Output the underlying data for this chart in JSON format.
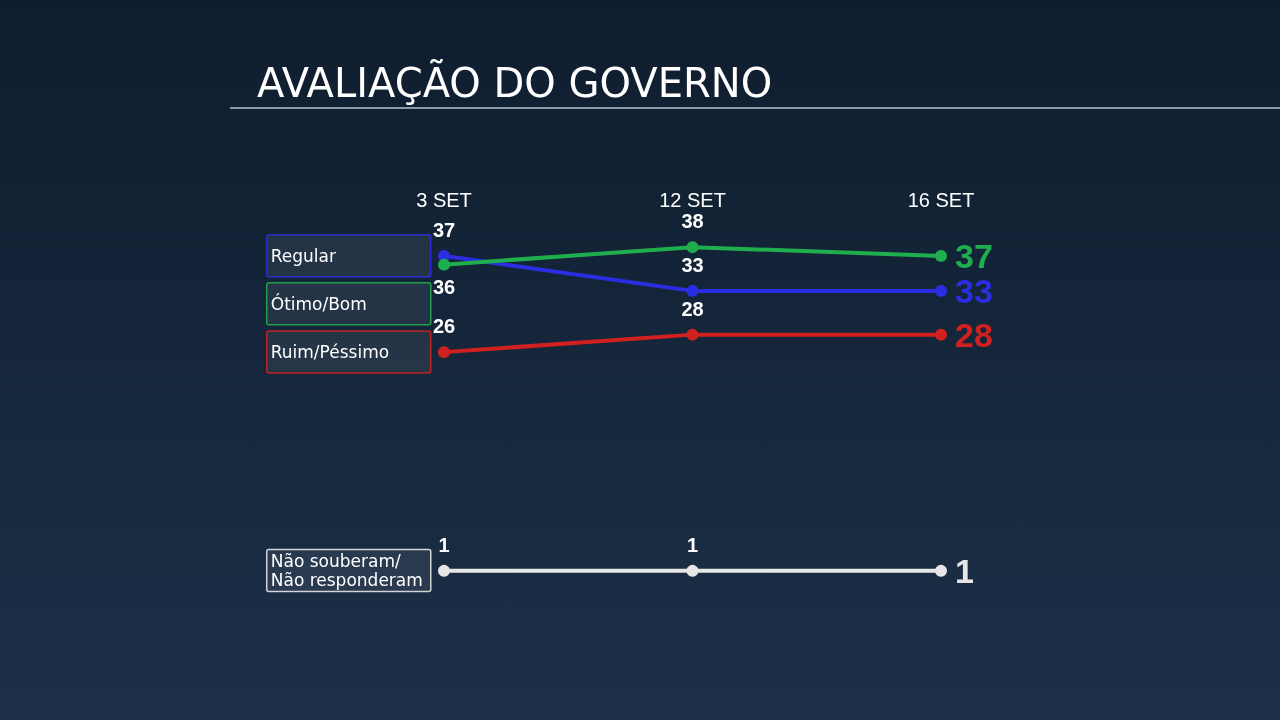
{
  "chart_data": {
    "type": "line",
    "title": "AVALIAÇÃO DO GOVERNO",
    "categories": [
      "3 SET",
      "12 SET",
      "16 SET"
    ],
    "series": [
      {
        "name": "Regular",
        "color": "#2b2ee0",
        "values": [
          37,
          33,
          33
        ]
      },
      {
        "name": "Ótimo/Bom",
        "color": "#1fae4e",
        "values": [
          36,
          38,
          37
        ]
      },
      {
        "name": "Ruim/Péssimo",
        "color": "#d02020",
        "values": [
          26,
          28,
          28
        ]
      },
      {
        "name": "Não souberam/\nNão responderam",
        "color": "#e6e6e6",
        "values": [
          1,
          1,
          1
        ]
      }
    ],
    "data_labels": true,
    "marker": "circle",
    "line_style": "solid",
    "grid": false,
    "legend": false
  }
}
